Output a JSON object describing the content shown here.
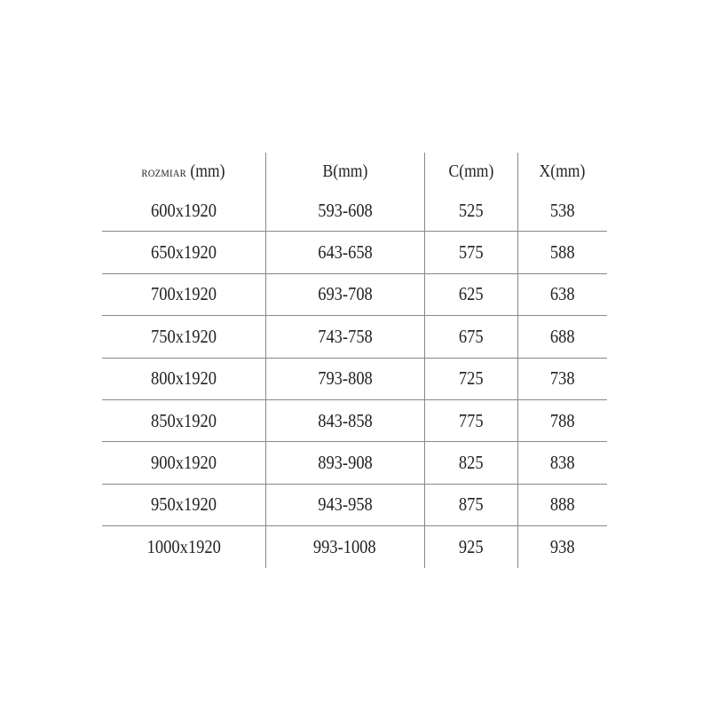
{
  "table": {
    "headers": [
      {
        "main": "ROZMIAR",
        "unit": "(mm)"
      },
      {
        "main": "B",
        "unit": "(mm)"
      },
      {
        "main": "C",
        "unit": "(mm)"
      },
      {
        "main": "X",
        "unit": "(mm)"
      }
    ],
    "rows": [
      [
        "600x1920",
        "593-608",
        "525",
        "538"
      ],
      [
        "650x1920",
        "643-658",
        "575",
        "588"
      ],
      [
        "700x1920",
        "693-708",
        "625",
        "638"
      ],
      [
        "750x1920",
        "743-758",
        "675",
        "688"
      ],
      [
        "800x1920",
        "793-808",
        "725",
        "738"
      ],
      [
        "850x1920",
        "843-858",
        "775",
        "788"
      ],
      [
        "900x1920",
        "893-908",
        "825",
        "838"
      ],
      [
        "950x1920",
        "943-958",
        "875",
        "888"
      ],
      [
        "1000x1920",
        "993-1008",
        "925",
        "938"
      ]
    ]
  }
}
